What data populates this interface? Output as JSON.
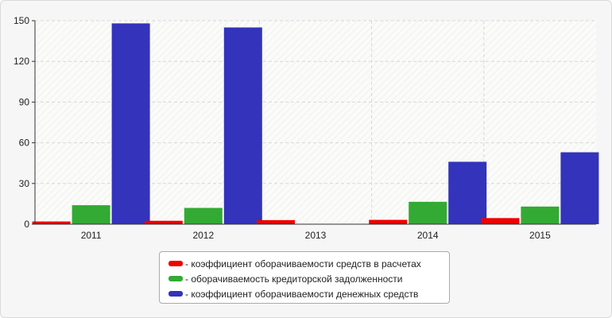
{
  "chart_data": {
    "type": "bar",
    "categories": [
      "2011",
      "2012",
      "2013",
      "2014",
      "2015"
    ],
    "series": [
      {
        "name": "- коэффициент оборачиваемости средств в расчетах",
        "color": "#ee0000",
        "values": [
          2,
          2.5,
          3,
          3.2,
          4.5
        ]
      },
      {
        "name": "- оборачиваемость кредиторской задолженности",
        "color": "#33aa33",
        "values": [
          14,
          12,
          0,
          16.5,
          13
        ]
      },
      {
        "name": "- коэффициент оборачиваемости денежных средств",
        "color": "#3333bb",
        "values": [
          148,
          145,
          0,
          46,
          53
        ]
      }
    ],
    "ylim": [
      0,
      150
    ],
    "yticks": [
      0,
      30,
      60,
      90,
      120,
      150
    ],
    "grid": true,
    "legend_position": "bottom-center"
  }
}
